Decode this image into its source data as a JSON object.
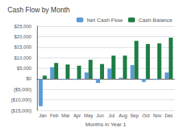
{
  "chart_data": {
    "type": "bar",
    "title": "Cash Flow by Month",
    "xlabel": "Months in Year 1",
    "categories": [
      "Jan",
      "Feb",
      "Mar",
      "Apr",
      "May",
      "Jun",
      "Jul",
      "Aug",
      "Sep",
      "Oct",
      "Nov",
      "Dec"
    ],
    "series": [
      {
        "name": "Net Cash Flow",
        "color": "#5b9bd5",
        "values": [
          -13000,
          5500,
          -500,
          -500,
          3000,
          -2000,
          4800,
          500,
          6500,
          -1500,
          -500,
          3000
        ]
      },
      {
        "name": "Cash Balance",
        "color": "#1e7e45",
        "values": [
          1500,
          7500,
          6800,
          6200,
          9000,
          7000,
          11000,
          11000,
          18000,
          16500,
          16800,
          19500
        ]
      }
    ],
    "ylim": [
      -15000,
      25000
    ],
    "yticks": [
      {
        "value": -15000,
        "label": "($15,000)"
      },
      {
        "value": -10000,
        "label": "($10,000)"
      },
      {
        "value": -5000,
        "label": "($5,000)"
      },
      {
        "value": 0,
        "label": "$0"
      },
      {
        "value": 5000,
        "label": "$5,000"
      },
      {
        "value": 10000,
        "label": "$10,000"
      },
      {
        "value": 15000,
        "label": "$15,000"
      },
      {
        "value": 20000,
        "label": "$20,000"
      },
      {
        "value": 25000,
        "label": "$25,000"
      }
    ],
    "grid": true,
    "legend": "upper right"
  }
}
